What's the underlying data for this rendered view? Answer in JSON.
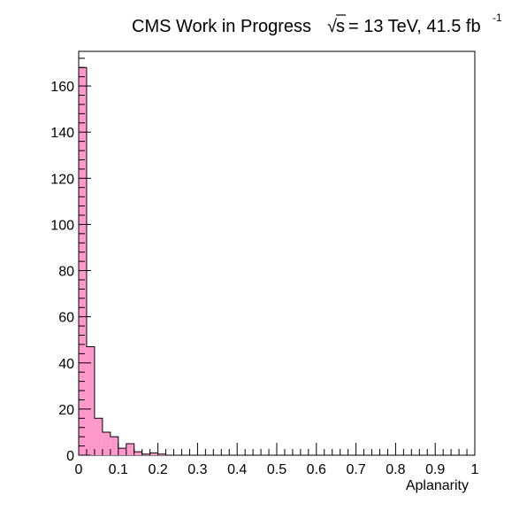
{
  "chart_data": {
    "type": "bar",
    "title_main": "CMS Work in Progress",
    "title_sqrt_symbol": "√",
    "title_sqrt_arg": "s",
    "title_energy": "= 13 TeV, 41.5 fb",
    "title_superscript": "-1",
    "xlabel": "Aplanarity",
    "ylabel": "",
    "xlim": [
      0,
      1
    ],
    "ylim": [
      0,
      175
    ],
    "x_tick_labels": [
      "0",
      "0.1",
      "0.2",
      "0.3",
      "0.4",
      "0.5",
      "0.6",
      "0.7",
      "0.8",
      "0.9",
      "1"
    ],
    "y_tick_labels": [
      "0",
      "20",
      "40",
      "60",
      "80",
      "100",
      "120",
      "140",
      "160"
    ],
    "bin_width": 0.02,
    "bin_low_edges": [
      0.0,
      0.02,
      0.04,
      0.06,
      0.08,
      0.1,
      0.12,
      0.14,
      0.16,
      0.18,
      0.2
    ],
    "values": [
      168,
      47,
      16,
      10,
      8,
      3,
      5,
      1.5,
      0.5,
      1,
      0.5
    ],
    "fill_color": "#ff99cc",
    "line_color": "#000000",
    "grid": false,
    "legend": "none"
  }
}
